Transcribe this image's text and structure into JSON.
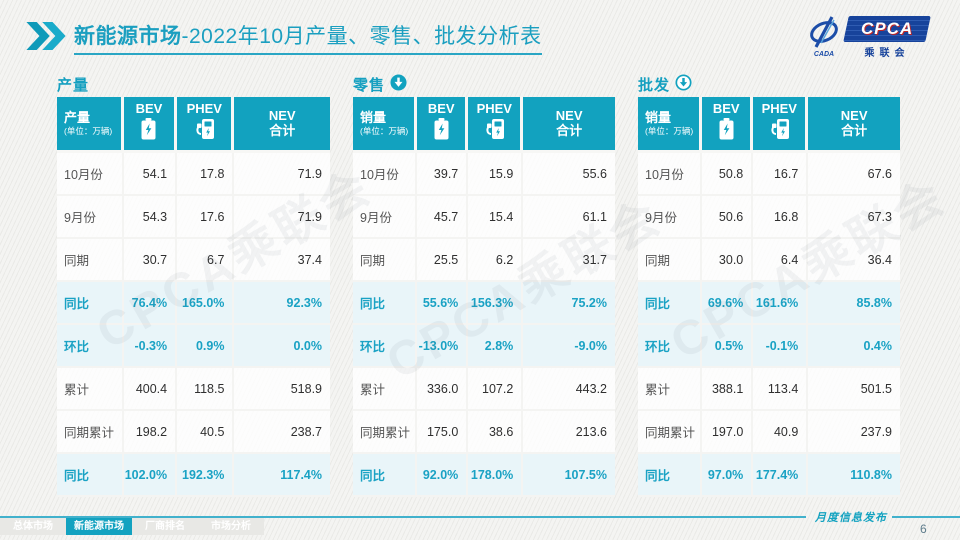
{
  "page": {
    "background": "#f2f2f0",
    "accent": "#12a2bf"
  },
  "header": {
    "title_bold": "新能源市场",
    "title_rest": "-2022年10月产量、零售、批发分析表"
  },
  "logo": {
    "cpca": "CPCA",
    "sub": "乘联会",
    "cada": "CADA"
  },
  "watermark": "CPCA乘联会",
  "tables": [
    {
      "section": "产量",
      "arrow": "none",
      "head": {
        "title": "产量",
        "unit": "(单位：万辆)",
        "bev": "BEV",
        "phev": "PHEV",
        "nev_line1": "NEV",
        "nev_line2": "合计"
      },
      "rows": [
        {
          "label": "10月份",
          "values": [
            "54.1",
            "17.8",
            "71.9"
          ],
          "highlight": false
        },
        {
          "label": "9月份",
          "values": [
            "54.3",
            "17.6",
            "71.9"
          ],
          "highlight": false
        },
        {
          "label": "同期",
          "values": [
            "30.7",
            "6.7",
            "37.4"
          ],
          "highlight": false
        },
        {
          "label": "同比",
          "values": [
            "76.4%",
            "165.0%",
            "92.3%"
          ],
          "highlight": true
        },
        {
          "label": "环比",
          "values": [
            "-0.3%",
            "0.9%",
            "0.0%"
          ],
          "highlight": true
        },
        {
          "label": "累计",
          "values": [
            "400.4",
            "118.5",
            "518.9"
          ],
          "highlight": false
        },
        {
          "label": "同期累计",
          "values": [
            "198.2",
            "40.5",
            "238.7"
          ],
          "highlight": false
        },
        {
          "label": "同比",
          "values": [
            "102.0%",
            "192.3%",
            "117.4%"
          ],
          "highlight": true
        }
      ]
    },
    {
      "section": "零售",
      "arrow": "filled",
      "head": {
        "title": "销量",
        "unit": "(单位：万辆)",
        "bev": "BEV",
        "phev": "PHEV",
        "nev_line1": "NEV",
        "nev_line2": "合计"
      },
      "rows": [
        {
          "label": "10月份",
          "values": [
            "39.7",
            "15.9",
            "55.6"
          ],
          "highlight": false
        },
        {
          "label": "9月份",
          "values": [
            "45.7",
            "15.4",
            "61.1"
          ],
          "highlight": false
        },
        {
          "label": "同期",
          "values": [
            "25.5",
            "6.2",
            "31.7"
          ],
          "highlight": false
        },
        {
          "label": "同比",
          "values": [
            "55.6%",
            "156.3%",
            "75.2%"
          ],
          "highlight": true
        },
        {
          "label": "环比",
          "values": [
            "-13.0%",
            "2.8%",
            "-9.0%"
          ],
          "highlight": true
        },
        {
          "label": "累计",
          "values": [
            "336.0",
            "107.2",
            "443.2"
          ],
          "highlight": false
        },
        {
          "label": "同期累计",
          "values": [
            "175.0",
            "38.6",
            "213.6"
          ],
          "highlight": false
        },
        {
          "label": "同比",
          "values": [
            "92.0%",
            "178.0%",
            "107.5%"
          ],
          "highlight": true
        }
      ]
    },
    {
      "section": "批发",
      "arrow": "outline",
      "head": {
        "title": "销量",
        "unit": "(单位：万辆)",
        "bev": "BEV",
        "phev": "PHEV",
        "nev_line1": "NEV",
        "nev_line2": "合计"
      },
      "rows": [
        {
          "label": "10月份",
          "values": [
            "50.8",
            "16.7",
            "67.6"
          ],
          "highlight": false
        },
        {
          "label": "9月份",
          "values": [
            "50.6",
            "16.8",
            "67.3"
          ],
          "highlight": false
        },
        {
          "label": "同期",
          "values": [
            "30.0",
            "6.4",
            "36.4"
          ],
          "highlight": false
        },
        {
          "label": "同比",
          "values": [
            "69.6%",
            "161.6%",
            "85.8%"
          ],
          "highlight": true
        },
        {
          "label": "环比",
          "values": [
            "0.5%",
            "-0.1%",
            "0.4%"
          ],
          "highlight": true
        },
        {
          "label": "累计",
          "values": [
            "388.1",
            "113.4",
            "501.5"
          ],
          "highlight": false
        },
        {
          "label": "同期累计",
          "values": [
            "197.0",
            "40.9",
            "237.9"
          ],
          "highlight": false
        },
        {
          "label": "同比",
          "values": [
            "97.0%",
            "177.4%",
            "110.8%"
          ],
          "highlight": true
        }
      ]
    }
  ],
  "footer": {
    "tabs": [
      {
        "label": "总体市场",
        "active": false
      },
      {
        "label": "新能源市场",
        "active": true
      },
      {
        "label": "厂商排名",
        "active": false
      },
      {
        "label": "市场分析",
        "active": false
      }
    ],
    "note": "月度信息发布",
    "page_number": "6"
  }
}
